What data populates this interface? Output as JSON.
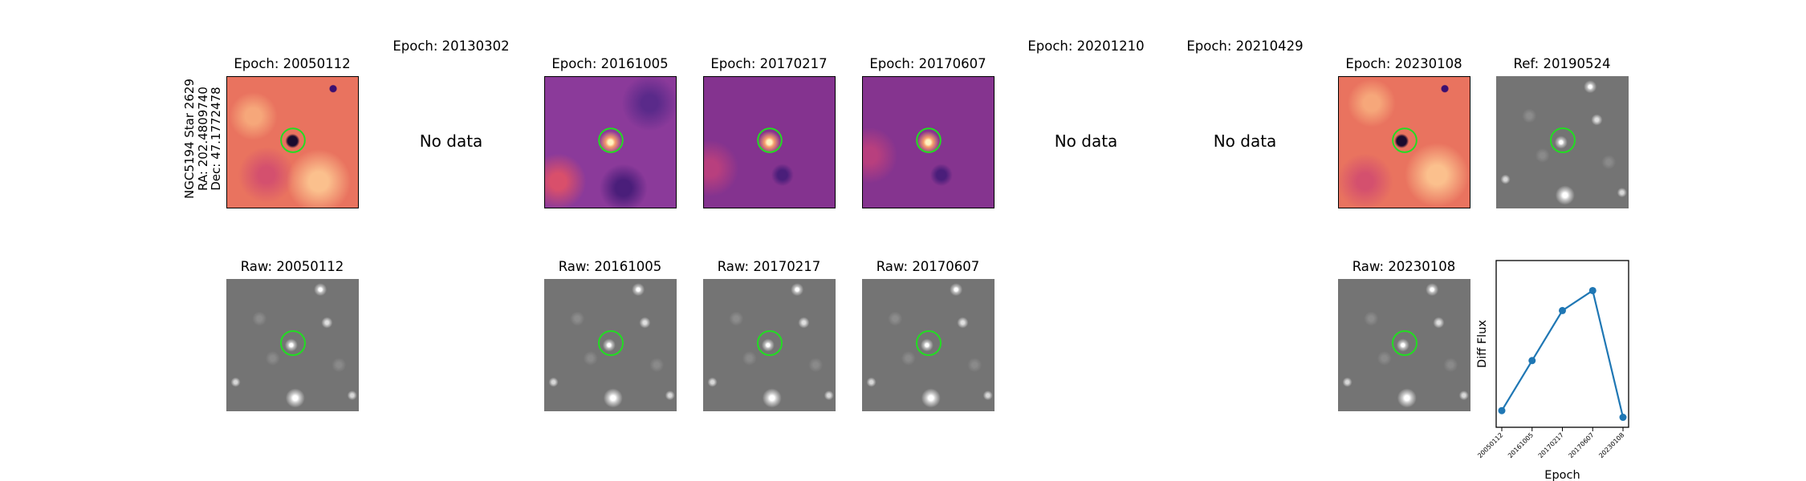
{
  "object_label": {
    "name": "NGC5194 Star 2629",
    "ra": "RA: 202.4809740",
    "dec": "Dec: 47.1772478"
  },
  "epochs": [
    {
      "title": "Epoch: 20050112",
      "has_data": true,
      "raw_title": "Raw: 20050112"
    },
    {
      "title": "Epoch: 20130302",
      "has_data": false,
      "no_data_text": "No data"
    },
    {
      "title": "Epoch: 20161005",
      "has_data": true,
      "raw_title": "Raw: 20161005"
    },
    {
      "title": "Epoch: 20170217",
      "has_data": true,
      "raw_title": "Raw: 20170217"
    },
    {
      "title": "Epoch: 20170607",
      "has_data": true,
      "raw_title": "Raw: 20170607"
    },
    {
      "title": "Epoch: 20201210",
      "has_data": false,
      "no_data_text": "No data"
    },
    {
      "title": "Epoch: 20210429",
      "has_data": false,
      "no_data_text": "No data"
    },
    {
      "title": "Epoch: 20230108",
      "has_data": true,
      "raw_title": "Raw: 20230108"
    }
  ],
  "reference": {
    "title": "Ref: 20190524"
  },
  "marker_color": "#22dd22",
  "chart_data": {
    "type": "line",
    "x": [
      "20050112",
      "20161005",
      "20170217",
      "20170607",
      "20230108"
    ],
    "values": [
      0.1,
      0.4,
      0.7,
      0.82,
      0.06
    ],
    "xlabel": "Epoch",
    "ylabel": "Diff Flux",
    "color": "#1f77b4",
    "grid": false,
    "y_tick_labels": false
  }
}
